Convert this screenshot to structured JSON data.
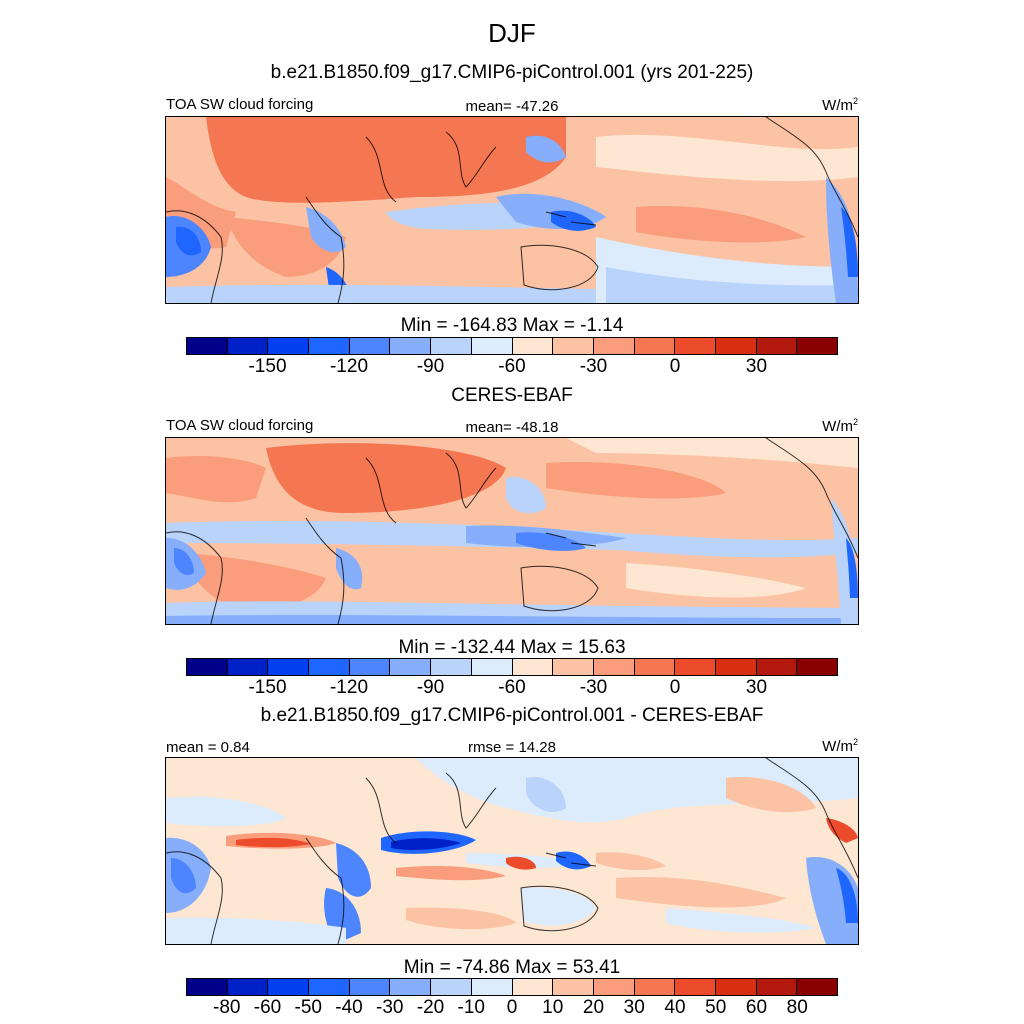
{
  "title": "DJF",
  "palette": [
    "#00008b",
    "#0020c8",
    "#0040ee",
    "#1f66ff",
    "#4d85ff",
    "#86aefa",
    "#b9d3fb",
    "#dcecfd",
    "#fde6d2",
    "#fcc2a4",
    "#fa9d7c",
    "#f57752",
    "#ec4c2b",
    "#d82f12",
    "#b31a0d",
    "#8b0000"
  ],
  "panels": [
    {
      "id": "model",
      "title": "b.e21.B1850.f09_g17.CMIP6-piControl.001 (yrs 201-225)",
      "left_label": "TOA SW cloud forcing",
      "center_label": "mean= -47.26",
      "units": "W/m",
      "units_sup": "2",
      "minmax": "Min = -164.83 Max =  -1.14",
      "ticks": [
        "-150",
        "-120",
        "-90",
        "-60",
        "-30",
        "0",
        "30"
      ]
    },
    {
      "id": "obs",
      "title": "CERES-EBAF",
      "left_label": "TOA SW cloud forcing",
      "center_label": "mean= -48.18",
      "units": "W/m",
      "units_sup": "2",
      "minmax": "Min = -132.44 Max =  15.63",
      "ticks": [
        "-150",
        "-120",
        "-90",
        "-60",
        "-30",
        "0",
        "30"
      ]
    },
    {
      "id": "diff",
      "title": "b.e21.B1850.f09_g17.CMIP6-piControl.001 - CERES-EBAF",
      "left_label": "mean =   0.84",
      "center_label": "rmse =  14.28",
      "units": "W/m",
      "units_sup": "2",
      "minmax": "Min = -74.86 Max =  53.41",
      "ticks": [
        "-80",
        "-60",
        "-50",
        "-40",
        "-30",
        "-20",
        "-10",
        "0",
        "10",
        "20",
        "30",
        "40",
        "50",
        "60",
        "80"
      ]
    }
  ]
}
